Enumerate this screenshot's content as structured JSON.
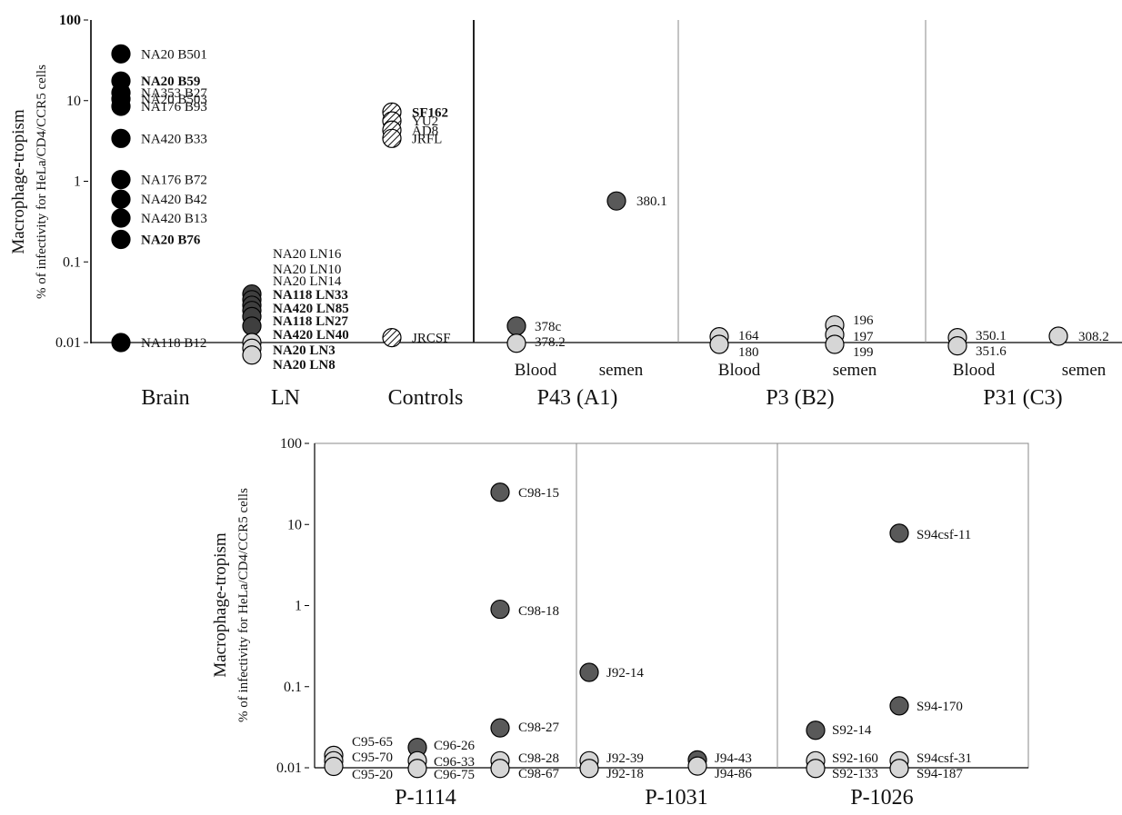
{
  "colors": {
    "brain": "#000000",
    "ln": "#3f3f3f",
    "dark": "#595959",
    "light": "#d6d6d6",
    "stroke": "#000000",
    "divider_heavy": "#222222",
    "divider_light": "#888888",
    "hatch": "#111111"
  },
  "chart_data": [
    {
      "type": "scatter",
      "y_scale": "log",
      "ylim": [
        0.01,
        100
      ],
      "ylabel": "Macrophage-tropism",
      "ylabel2": "% of infectivity for HeLa/CD4/CCR5 cells",
      "y_ticks": [
        "100",
        "10",
        "1",
        "0.1",
        "0.01"
      ],
      "groups": [
        {
          "name": "Brain",
          "points": [
            {
              "label": "NA20 B501",
              "y": 38,
              "style": "black"
            },
            {
              "label": "NA20 B59",
              "y": 17.5,
              "style": "black"
            },
            {
              "label": "NA353 B27",
              "y": 12.5,
              "style": "black"
            },
            {
              "label": "NA20 B503",
              "y": 10.5,
              "style": "black"
            },
            {
              "label": "NA176 B93",
              "y": 8.5,
              "style": "black"
            },
            {
              "label": "NA420 B33",
              "y": 3.4,
              "style": "black"
            },
            {
              "label": "NA176 B72",
              "y": 1.05,
              "style": "black"
            },
            {
              "label": "NA420 B42",
              "y": 0.6,
              "style": "black"
            },
            {
              "label": "NA420 B13",
              "y": 0.35,
              "style": "black"
            },
            {
              "label": "NA20 B76",
              "y": 0.19,
              "style": "black"
            },
            {
              "label": "NA118 B12",
              "y": 0.01,
              "style": "black"
            }
          ]
        },
        {
          "name": "LN",
          "points": [
            {
              "label": "NA20 LN16",
              "y": 0.04,
              "style": "ln"
            },
            {
              "label": "NA20 LN10",
              "y": 0.034,
              "style": "ln"
            },
            {
              "label": "NA20 LN14",
              "y": 0.029,
              "style": "ln"
            },
            {
              "label": "NA118 LN33",
              "y": 0.025,
              "style": "ln"
            },
            {
              "label": "NA420 LN85",
              "y": 0.021,
              "style": "ln"
            },
            {
              "label": "NA118 LN27",
              "y": 0.016,
              "style": "ln"
            },
            {
              "label": "NA420 LN40",
              "y": 0.01,
              "style": "light"
            },
            {
              "label": "NA20 LN3",
              "y": 0.0085,
              "style": "light"
            },
            {
              "label": "NA20 LN8",
              "y": 0.007,
              "style": "light"
            }
          ]
        },
        {
          "name": "Controls",
          "points": [
            {
              "label": "SF162",
              "y": 7.2,
              "style": "hatched"
            },
            {
              "label": "YU2",
              "y": 5.6,
              "style": "hatched"
            },
            {
              "label": "AD8",
              "y": 4.3,
              "style": "hatched"
            },
            {
              "label": "JRFL",
              "y": 3.4,
              "style": "hatched"
            },
            {
              "label": "JRCSF",
              "y": 0.0115,
              "style": "hatched"
            }
          ]
        },
        {
          "name": "P43 (A1)",
          "subgroups": [
            "Blood",
            "semen"
          ],
          "points": [
            {
              "label": "378c",
              "y": 0.016,
              "style": "dark",
              "sub": "Blood"
            },
            {
              "label": "378.2",
              "y": 0.0098,
              "style": "light",
              "sub": "Blood"
            },
            {
              "label": "380.1",
              "y": 0.57,
              "style": "dark",
              "sub": "semen"
            }
          ]
        },
        {
          "name": "P3 (B2)",
          "subgroups": [
            "Blood",
            "semen"
          ],
          "points": [
            {
              "label": "164",
              "y": 0.0118,
              "style": "light",
              "sub": "Blood"
            },
            {
              "label": "180",
              "y": 0.0095,
              "style": "light",
              "sub": "Blood"
            },
            {
              "label": "196",
              "y": 0.0165,
              "style": "light",
              "sub": "semen"
            },
            {
              "label": "197",
              "y": 0.0125,
              "style": "light",
              "sub": "semen"
            },
            {
              "label": "199",
              "y": 0.0095,
              "style": "light",
              "sub": "semen"
            }
          ]
        },
        {
          "name": "P31 (C3)",
          "subgroups": [
            "Blood",
            "semen"
          ],
          "points": [
            {
              "label": "350.1",
              "y": 0.0115,
              "style": "light",
              "sub": "Blood"
            },
            {
              "label": "351.6",
              "y": 0.0091,
              "style": "light",
              "sub": "Blood"
            },
            {
              "label": "308.2",
              "y": 0.012,
              "style": "light",
              "sub": "semen"
            }
          ]
        }
      ]
    },
    {
      "type": "scatter",
      "y_scale": "log",
      "ylim": [
        0.01,
        100
      ],
      "ylabel": "Macrophage-tropism",
      "ylabel2": "% of infectivity for HeLa/CD4/CCR5 cells",
      "y_ticks": [
        "100",
        "10",
        "1",
        "0.1",
        "0.01"
      ],
      "groups": [
        {
          "name": "P-1114",
          "points": [
            {
              "label": "C95-65",
              "y": 0.0142,
              "style": "light",
              "col": 0
            },
            {
              "label": "C95-70",
              "y": 0.0122,
              "style": "light",
              "col": 0
            },
            {
              "label": "C95-20",
              "y": 0.0104,
              "style": "light",
              "col": 0
            },
            {
              "label": "C96-26",
              "y": 0.0178,
              "style": "dark",
              "col": 1
            },
            {
              "label": "C96-33",
              "y": 0.0122,
              "style": "light",
              "col": 1
            },
            {
              "label": "C96-75",
              "y": 0.0098,
              "style": "light",
              "col": 1
            },
            {
              "label": "C98-15",
              "y": 25,
              "style": "dark",
              "col": 2
            },
            {
              "label": "C98-18",
              "y": 0.9,
              "style": "dark",
              "col": 2
            },
            {
              "label": "C98-27",
              "y": 0.031,
              "style": "dark",
              "col": 2
            },
            {
              "label": "C98-28",
              "y": 0.0122,
              "style": "light",
              "col": 2
            },
            {
              "label": "C98-67",
              "y": 0.0098,
              "style": "light",
              "col": 2
            }
          ]
        },
        {
          "name": "P-1031",
          "points": [
            {
              "label": "J92-14",
              "y": 0.15,
              "style": "dark",
              "col": 0
            },
            {
              "label": "J92-39",
              "y": 0.0122,
              "style": "light",
              "col": 0
            },
            {
              "label": "J92-18",
              "y": 0.0098,
              "style": "light",
              "col": 0
            },
            {
              "label": "J94-43",
              "y": 0.0125,
              "style": "dark",
              "col": 1
            },
            {
              "label": "J94-86",
              "y": 0.0105,
              "style": "light",
              "col": 1
            }
          ]
        },
        {
          "name": "P-1026",
          "points": [
            {
              "label": "S92-14",
              "y": 0.029,
              "style": "dark",
              "col": 0
            },
            {
              "label": "S92-160",
              "y": 0.0122,
              "style": "light",
              "col": 0
            },
            {
              "label": "S92-133",
              "y": 0.0098,
              "style": "light",
              "col": 0
            },
            {
              "label": "S94csf-11",
              "y": 7.8,
              "style": "dark",
              "col": 1
            },
            {
              "label": "S94-170",
              "y": 0.058,
              "style": "dark",
              "col": 1
            },
            {
              "label": "S94csf-31",
              "y": 0.0122,
              "style": "light",
              "col": 1
            },
            {
              "label": "S94-187",
              "y": 0.0098,
              "style": "light",
              "col": 1
            }
          ]
        }
      ]
    }
  ]
}
